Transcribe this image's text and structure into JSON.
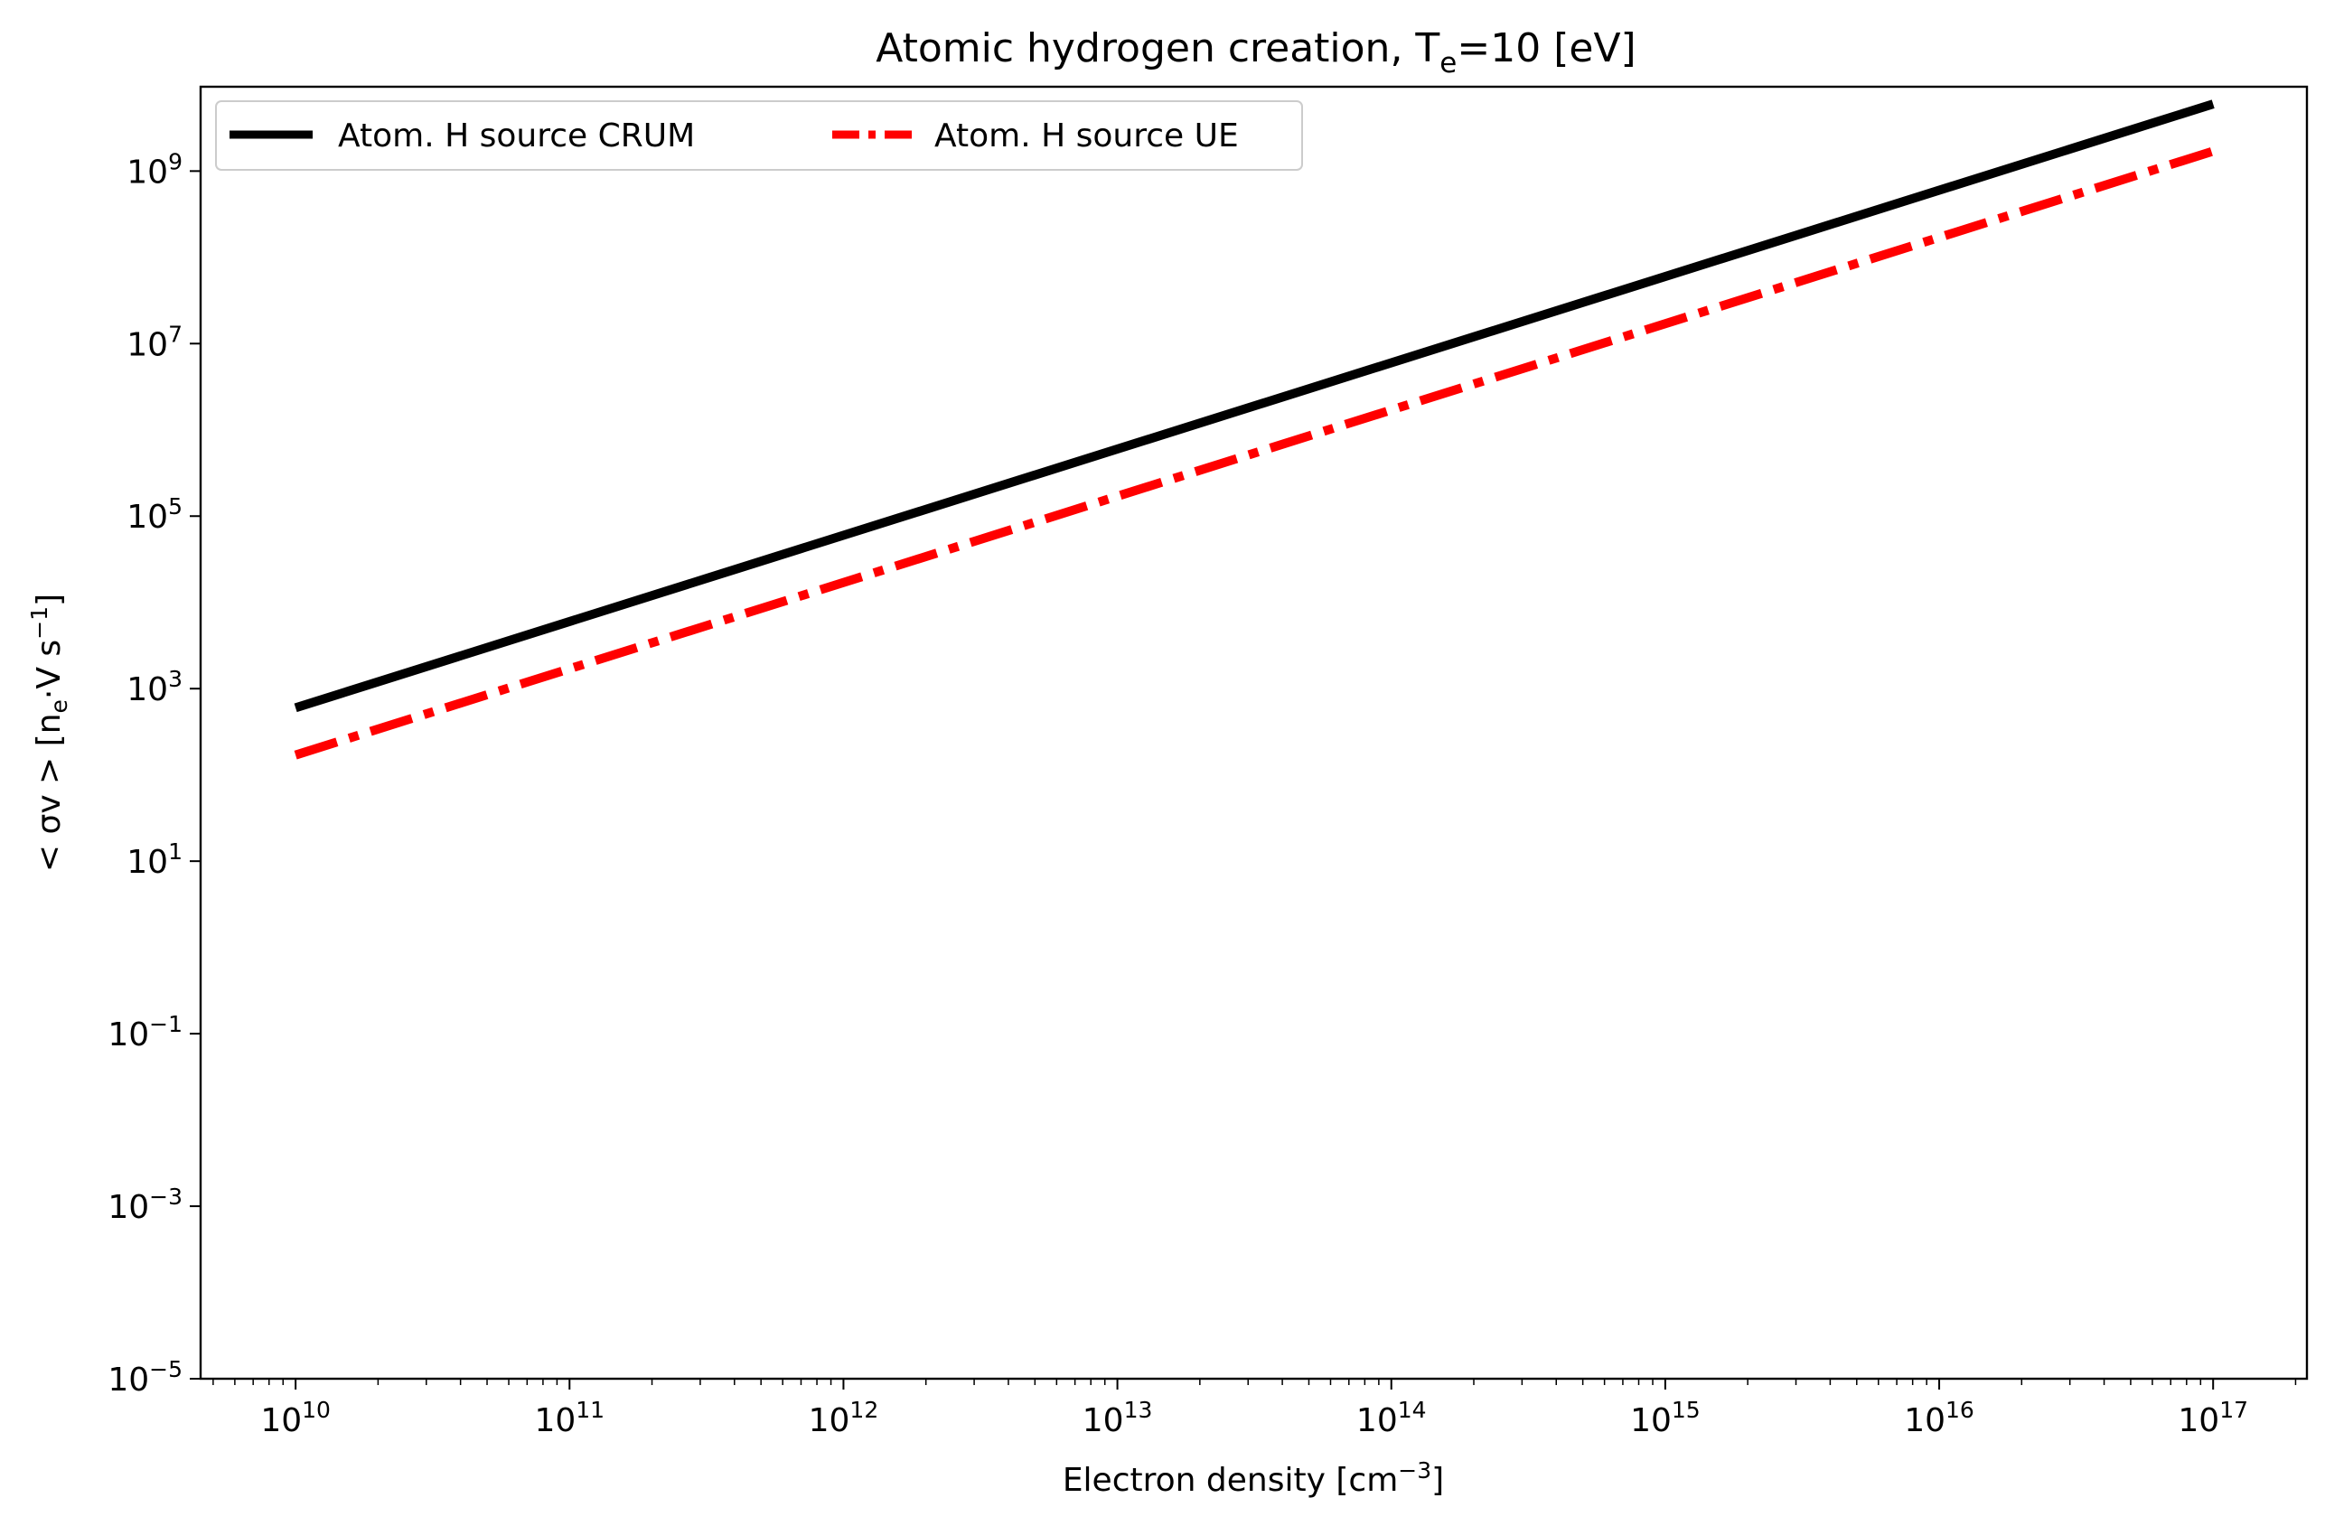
{
  "chart_data": {
    "type": "line",
    "title": {
      "main": "Atomic hydrogen creation, T",
      "sub": "e",
      "tail": "=10 [eV]"
    },
    "xlabel": {
      "main": "Electron density [cm",
      "sup": "−3",
      "tail": "]"
    },
    "ylabel": {
      "p1": "< σv >  [n",
      "sub": "e",
      "p2": "·V   s",
      "sup": "−1",
      "p3": "]"
    },
    "x_scale": "log",
    "y_scale": "log",
    "xlim": [
      4500000000.0,
      2.2e+17
    ],
    "ylim": [
      1e-05,
      9500000000.0
    ],
    "x_ticks": [
      {
        "base": "10",
        "exp": "10",
        "value": 10000000000.0
      },
      {
        "base": "10",
        "exp": "11",
        "value": 100000000000.0
      },
      {
        "base": "10",
        "exp": "12",
        "value": 1000000000000.0
      },
      {
        "base": "10",
        "exp": "13",
        "value": 10000000000000.0
      },
      {
        "base": "10",
        "exp": "14",
        "value": 100000000000000.0
      },
      {
        "base": "10",
        "exp": "15",
        "value": 1000000000000000.0
      },
      {
        "base": "10",
        "exp": "16",
        "value": 1e+16
      },
      {
        "base": "10",
        "exp": "17",
        "value": 1e+17
      }
    ],
    "y_ticks": [
      {
        "base": "10",
        "exp": "−5",
        "value": 1e-05
      },
      {
        "base": "10",
        "exp": "−3",
        "value": 0.001
      },
      {
        "base": "10",
        "exp": "−1",
        "value": 0.1
      },
      {
        "base": "10",
        "exp": "1",
        "value": 10.0
      },
      {
        "base": "10",
        "exp": "3",
        "value": 1000.0
      },
      {
        "base": "10",
        "exp": "5",
        "value": 100000.0
      },
      {
        "base": "10",
        "exp": "7",
        "value": 10000000.0
      },
      {
        "base": "10",
        "exp": "9",
        "value": 1000000000.0
      }
    ],
    "grid": false,
    "legend_position": "top-left",
    "series": [
      {
        "name": "Atom. H source CRUM",
        "color": "#000000",
        "style": "solid",
        "x": [
          10000000000.0,
          1e+17
        ],
        "y": [
          600,
          6000000000.0
        ]
      },
      {
        "name": "Atom. H source UE",
        "color": "#ff0000",
        "style": "dashdot",
        "x": [
          10000000000.0,
          1e+17
        ],
        "y": [
          170,
          1700000000.0
        ]
      }
    ]
  }
}
